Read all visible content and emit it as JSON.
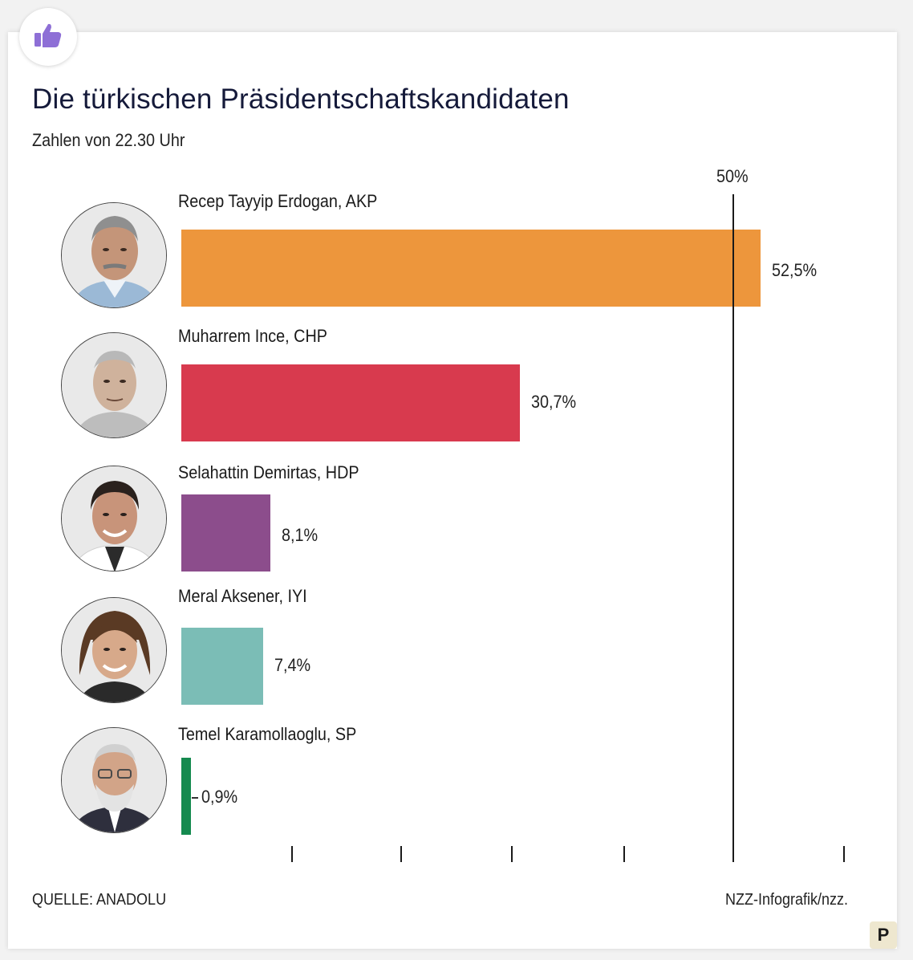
{
  "header": {
    "badge_icon": "thumbs-up-icon",
    "badge_color": "#8e6fd6"
  },
  "chart_data": {
    "type": "bar",
    "orientation": "horizontal",
    "title": "Die türkischen Präsidentschaftskandidaten",
    "subtitle": "Zahlen von 22.30 Uhr",
    "reference_line": {
      "value": 50,
      "label": "50%"
    },
    "xlim": [
      0,
      55
    ],
    "categories": [
      "Recep Tayyip Erdogan, AKP",
      "Muharrem Ince,  CHP",
      "Selahattin Demirtas, HDP",
      "Meral Aksener, IYI",
      "Temel Karamollaoglu, SP"
    ],
    "values": [
      52.5,
      30.7,
      8.1,
      7.4,
      0.9
    ],
    "value_labels": [
      "52,5%",
      "30,7%",
      "8,1%",
      "7,4%",
      "0,9%"
    ],
    "colors": [
      "#ed963c",
      "#d83a4e",
      "#8c4d8c",
      "#7bbdb6",
      "#158a4f"
    ]
  },
  "footer": {
    "source": "QUELLE: ANADOLU",
    "credit": "NZZ-Infografik/nzz.",
    "p_button": "P"
  }
}
